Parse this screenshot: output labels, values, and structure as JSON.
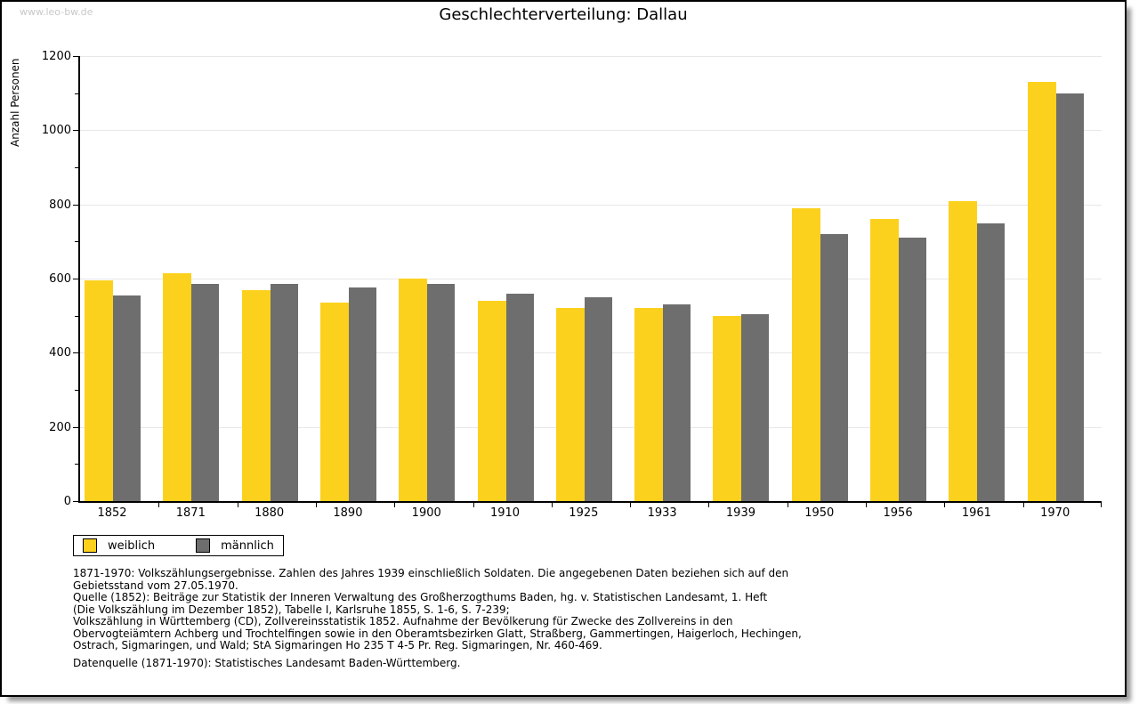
{
  "watermark": "www.leo-bw.de",
  "title": "Geschlechterverteilung: Dallau",
  "chart_data": {
    "type": "bar",
    "title": "Geschlechterverteilung: Dallau",
    "xlabel": "",
    "ylabel": "Anzahl Personen",
    "ylim": [
      0,
      1200
    ],
    "ytick_step": 200,
    "ytick_minor_step": 100,
    "grid": "horizontal",
    "legend_position": "bottom-left",
    "categories": [
      "1852",
      "1871",
      "1880",
      "1890",
      "1900",
      "1910",
      "1925",
      "1933",
      "1939",
      "1950",
      "1956",
      "1961",
      "1970"
    ],
    "series": [
      {
        "name": "weiblich",
        "color": "#FCD11E",
        "values": [
          595,
          615,
          570,
          535,
          600,
          540,
          520,
          520,
          500,
          790,
          760,
          810,
          1130
        ]
      },
      {
        "name": "männlich",
        "color": "#6E6E6E",
        "values": [
          555,
          585,
          585,
          575,
          585,
          560,
          550,
          530,
          505,
          720,
          710,
          750,
          1100
        ]
      }
    ]
  },
  "legend": {
    "items": [
      {
        "label": "weiblich",
        "color": "#FCD11E"
      },
      {
        "label": "männlich",
        "color": "#6E6E6E"
      }
    ]
  },
  "footnotes": {
    "lines": [
      "1871-1970: Volkszählungsergebnisse. Zahlen des Jahres 1939 einschließlich Soldaten. Die angegebenen Daten beziehen sich auf den",
      "Gebietsstand vom 27.05.1970.",
      "Quelle (1852): Beiträge zur Statistik der Inneren Verwaltung des Großherzogthums Baden, hg. v. Statistischen Landesamt, 1. Heft",
      "(Die Volkszählung im Dezember 1852), Tabelle I, Karlsruhe 1855, S. 1-6, S. 7-239;",
      "Volkszählung in Württemberg (CD), Zollvereinsstatistik 1852. Aufnahme der Bevölkerung für Zwecke des Zollvereins in den",
      "Obervogteiämtern Achberg und Trochtelfingen sowie in den Oberamtsbezirken Glatt, Straßberg, Gammertingen, Haigerloch, Hechingen,",
      "Ostrach, Sigmaringen, und Wald; StA Sigmaringen Ho 235 T 4-5 Pr. Reg. Sigmaringen, Nr. 460-469."
    ],
    "datasource": "Datenquelle (1871-1970): Statistisches Landesamt Baden-Württemberg."
  },
  "colors": {
    "bar_female": "#FCD11E",
    "bar_male": "#6E6E6E",
    "gridline": "#E7E7E7",
    "axis": "#000000",
    "watermark": "#C8C8C8",
    "frame_shadow": "#999999",
    "background": "#FFFFFF"
  }
}
